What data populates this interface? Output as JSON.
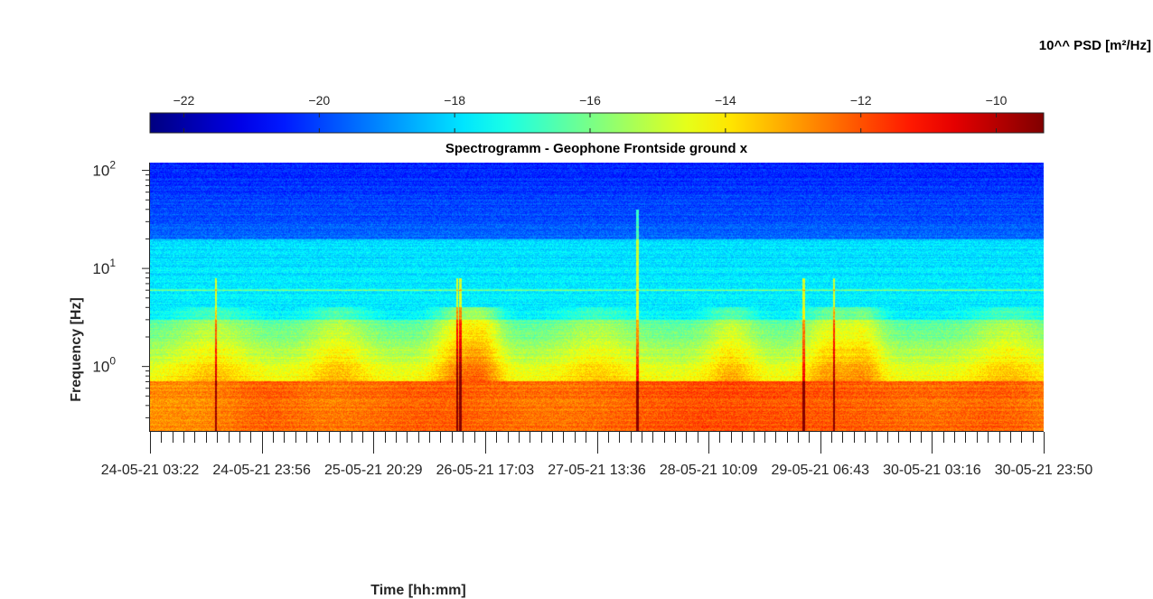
{
  "chart_data": {
    "type": "heatmap",
    "title": "Spectrogramm - Geophone Frontside ground x",
    "xlabel": "Time [hh:mm]",
    "ylabel": "Frequency [Hz]",
    "colorbar_label": "10^^ PSD [m²/Hz]",
    "colormap": "jet",
    "colorbar_ticks": [
      -22,
      -20,
      -18,
      -16,
      -14,
      -12,
      -10
    ],
    "colorbar_range": [
      -22.5,
      -9.3
    ],
    "y_scale": "log",
    "y_range_hz": [
      0.22,
      120
    ],
    "y_tick_values": [
      1,
      10,
      100
    ],
    "y_tick_labels": [
      {
        "base": "10",
        "exp": "0"
      },
      {
        "base": "10",
        "exp": "1"
      },
      {
        "base": "10",
        "exp": "2"
      }
    ],
    "x_range": [
      "24-05-21 03:22",
      "30-05-21 23:50"
    ],
    "x_tick_labels": [
      "24-05-21  03:22",
      "24-05-21  23:56",
      "25-05-21  20:29",
      "26-05-21  17:03",
      "27-05-21  13:36",
      "28-05-21  10:09",
      "29-05-21  06:43",
      "30-05-21  03:16",
      "30-05-21  23:50"
    ],
    "x_minor_ticks_per_major": 10,
    "legend": "none",
    "features": {
      "persistent_line_hz": 6,
      "quiet_band_above_hz": 20,
      "quiet_band_level": -20.5,
      "mid_band_level": -17.5,
      "low_band_below_hz": 0.7,
      "low_band_level": -12.3
    }
  }
}
